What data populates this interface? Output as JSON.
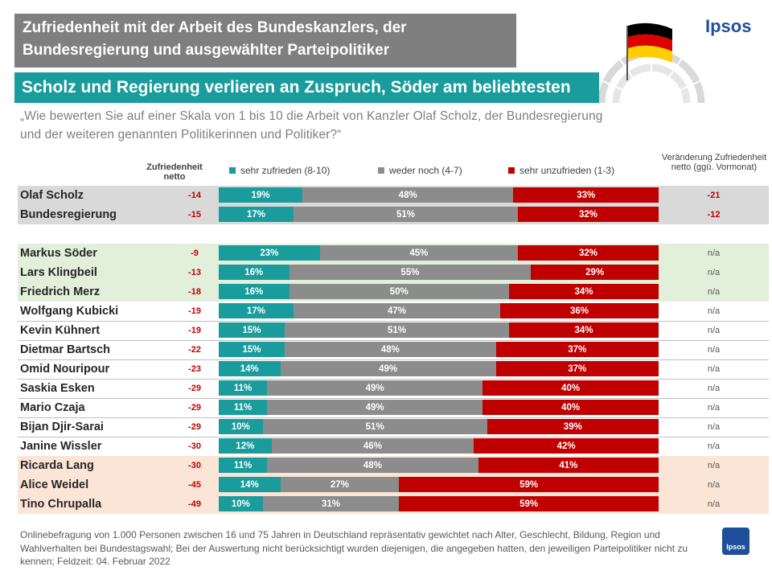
{
  "header": {
    "title_line1": "Zufriedenheit mit der Arbeit des Bundeskanzlers, der",
    "title_line2": "Bundesregierung und ausgewählter Parteipolitiker",
    "subtitle": "Scholz und Regierung verlieren an Zuspruch, Söder am beliebtesten",
    "logo": "Ipsos",
    "question": "„Wie bewerten Sie auf einer Skala von 1 bis 10 die Arbeit von Kanzler Olaf Scholz, der Bundesregierung  und der weiteren genannten Politikerinnen und Politiker?“"
  },
  "columns": {
    "netto_label": "Zufriedenheit netto",
    "change_label": "Veränderung Zufriedenheit netto (ggü. Vormonat)"
  },
  "colors": {
    "teal": "#1a9c9c",
    "grey": "#8c8c8c",
    "red": "#c00000",
    "grey_bg": "#d9d9d9",
    "green_bg": "#e2efda",
    "peach_bg": "#fbe5d6"
  },
  "chart_data": {
    "type": "bar",
    "orientation": "horizontal-stacked-100",
    "legend": [
      "sehr zufrieden (8-10)",
      "weder noch (4-7)",
      "sehr unzufrieden (1-3)"
    ],
    "categories": [
      "Olaf Scholz",
      "Bundesregierung",
      "Markus Söder",
      "Lars Klingbeil",
      "Friedrich Merz",
      "Wolfgang Kubicki",
      "Kevin Kühnert",
      "Dietmar Bartsch",
      "Omid Nouripour",
      "Saskia Esken",
      "Mario Czaja",
      "Bijan Djir-Sarai",
      "Janine Wissler",
      "Ricarda Lang",
      "Alice Weidel",
      "Tino Chrupalla"
    ],
    "series": [
      {
        "name": "sehr zufrieden (8-10)",
        "values": [
          19,
          17,
          23,
          16,
          16,
          17,
          15,
          15,
          14,
          11,
          11,
          10,
          12,
          11,
          14,
          10
        ]
      },
      {
        "name": "weder noch (4-7)",
        "values": [
          48,
          51,
          45,
          55,
          50,
          47,
          51,
          48,
          49,
          49,
          49,
          51,
          46,
          48,
          27,
          31
        ]
      },
      {
        "name": "sehr unzufrieden (1-3)",
        "values": [
          33,
          32,
          32,
          29,
          34,
          36,
          34,
          37,
          37,
          40,
          40,
          39,
          42,
          41,
          59,
          59
        ]
      }
    ],
    "netto": [
      "-14",
      "-15",
      "-9",
      "-13",
      "-18",
      "-19",
      "-19",
      "-22",
      "-23",
      "-29",
      "-29",
      "-29",
      "-30",
      "-30",
      "-45",
      "-49"
    ],
    "change": [
      "-21",
      "-12",
      "n/a",
      "n/a",
      "n/a",
      "n/a",
      "n/a",
      "n/a",
      "n/a",
      "n/a",
      "n/a",
      "n/a",
      "n/a",
      "n/a",
      "n/a",
      "n/a"
    ],
    "groups": [
      "grey",
      "grey",
      "green",
      "green",
      "green",
      "none",
      "none",
      "none",
      "none",
      "none",
      "none",
      "none",
      "none",
      "peach",
      "peach",
      "peach"
    ]
  },
  "footnote": "Onlinebefragung von 1.000 Personen zwischen 16 und 75 Jahren in Deutschland repräsentativ gewichtet nach Alter, Geschlecht, Bildung, Region und Wahlverhalten bei Bundestagswahl; Bei der Auswertung nicht berücksichtigt wurden diejenigen, die angegeben hatten, den jeweiligen Parteipolitiker nicht zu kennen; Feldzeit: 04. Februar 2022",
  "badge": "Ipsos"
}
